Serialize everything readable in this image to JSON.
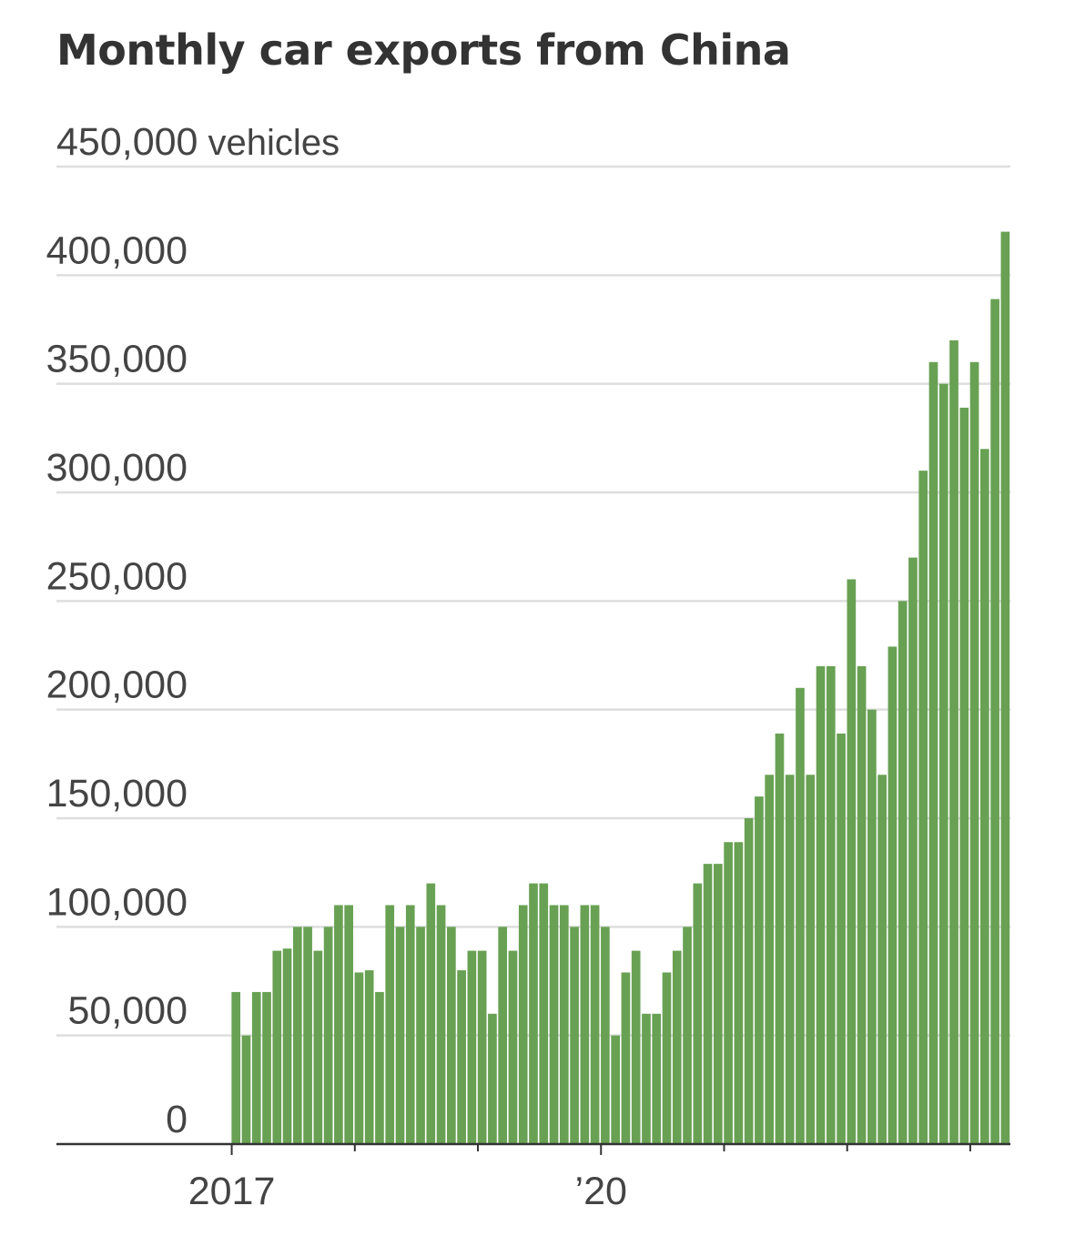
{
  "chart_data": {
    "type": "bar",
    "title": "Monthly car exports from China",
    "y_unit_label": "vehicles",
    "ylim": [
      0,
      450000
    ],
    "y_ticks": [
      0,
      50000,
      100000,
      150000,
      200000,
      250000,
      300000,
      350000,
      400000,
      450000
    ],
    "y_tick_labels": [
      "0",
      "50,000",
      "100,000",
      "150,000",
      "200,000",
      "250,000",
      "300,000",
      "350,000",
      "400,000",
      "450,000"
    ],
    "x_tick_labels": [
      {
        "index": 0,
        "label": "2017"
      },
      {
        "index": 36,
        "label": "’20"
      }
    ],
    "x_minor_tick_indices": [
      12,
      24,
      48,
      60,
      72
    ],
    "x_domain_months": [
      -17,
      76
    ],
    "grid": true,
    "bar_color": "#68a153",
    "values": [
      70000,
      50000,
      70000,
      70000,
      89000,
      90000,
      100000,
      100000,
      89000,
      100000,
      110000,
      110000,
      79000,
      80000,
      70000,
      110000,
      100000,
      110000,
      100000,
      120000,
      110000,
      100000,
      80000,
      89000,
      89000,
      60000,
      100000,
      89000,
      110000,
      120000,
      120000,
      110000,
      110000,
      100000,
      110000,
      110000,
      100000,
      50000,
      79000,
      89000,
      60000,
      60000,
      79000,
      89000,
      100000,
      120000,
      129000,
      129000,
      139000,
      139000,
      150000,
      160000,
      170000,
      189000,
      170000,
      210000,
      170000,
      220000,
      220000,
      189000,
      260000,
      220000,
      200000,
      170000,
      229000,
      250000,
      270000,
      310000,
      360000,
      350000,
      370000,
      339000,
      360000,
      320000,
      389000,
      420000
    ]
  }
}
